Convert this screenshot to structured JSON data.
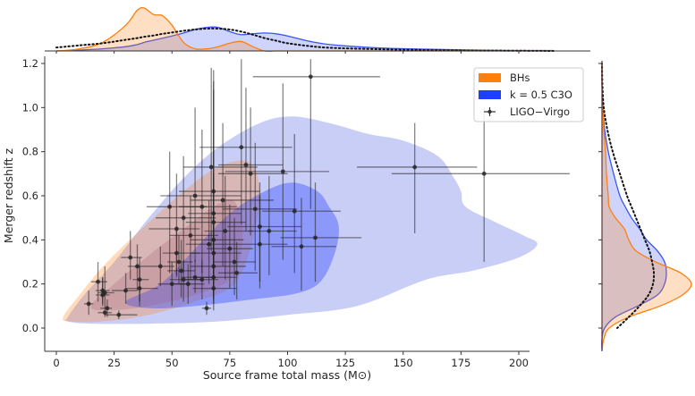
{
  "chart_data": {
    "type": "scatter",
    "xlabel": "Source frame total mass (M⊙)",
    "ylabel": "Merger redshift z",
    "xlim": [
      -5,
      215
    ],
    "ylim": [
      -0.1,
      1.2
    ],
    "xticks": [
      0,
      25,
      50,
      75,
      100,
      125,
      150,
      175,
      200
    ],
    "xtick_labels": [
      "0",
      "25",
      "50",
      "75",
      "100",
      "125",
      "150",
      "175",
      "200"
    ],
    "yticks": [
      0.0,
      0.2,
      0.4,
      0.6,
      0.8,
      1.0,
      1.2
    ],
    "ytick_labels": [
      "0.0",
      "0.2",
      "0.4",
      "0.6",
      "0.8",
      "1.0",
      "1.2"
    ],
    "grid": false,
    "legend": {
      "placement": "top-right",
      "entries": [
        {
          "label": "BHs",
          "kind": "patch",
          "color": "#ff7f0e"
        },
        {
          "label": "k = 0.5 C3O",
          "kind": "patch",
          "color": "#1f3fff"
        },
        {
          "label": "LIGO−Virgo",
          "kind": "errorbar",
          "color": "#333333"
        }
      ]
    },
    "colors": {
      "bhs": "#ff7f0e",
      "c3o": "#2b44ff",
      "ligo": "#222222",
      "kde_dotted": "#111111"
    },
    "contours": {
      "c3o_outer": [
        [
          5,
          0.05
        ],
        [
          12,
          0.15
        ],
        [
          25,
          0.3
        ],
        [
          40,
          0.5
        ],
        [
          55,
          0.68
        ],
        [
          70,
          0.82
        ],
        [
          88,
          0.93
        ],
        [
          102,
          0.96
        ],
        [
          118,
          0.93
        ],
        [
          135,
          0.88
        ],
        [
          150,
          0.85
        ],
        [
          165,
          0.78
        ],
        [
          172,
          0.68
        ],
        [
          175,
          0.62
        ],
        [
          177,
          0.55
        ],
        [
          190,
          0.48
        ],
        [
          202,
          0.42
        ],
        [
          208,
          0.38
        ],
        [
          200,
          0.32
        ],
        [
          180,
          0.26
        ],
        [
          160,
          0.22
        ],
        [
          130,
          0.1
        ],
        [
          100,
          0.06
        ],
        [
          70,
          0.03
        ],
        [
          40,
          0.02
        ],
        [
          15,
          0.02
        ],
        [
          5,
          0.03
        ]
      ],
      "c3o_inner": [
        [
          30,
          0.12
        ],
        [
          45,
          0.2
        ],
        [
          60,
          0.36
        ],
        [
          75,
          0.52
        ],
        [
          90,
          0.62
        ],
        [
          102,
          0.66
        ],
        [
          113,
          0.62
        ],
        [
          118,
          0.55
        ],
        [
          122,
          0.47
        ],
        [
          121,
          0.36
        ],
        [
          115,
          0.22
        ],
        [
          105,
          0.16
        ],
        [
          85,
          0.13
        ],
        [
          60,
          0.1
        ],
        [
          40,
          0.09
        ]
      ],
      "bhs_outer": [
        [
          3,
          0.05
        ],
        [
          10,
          0.15
        ],
        [
          22,
          0.3
        ],
        [
          40,
          0.48
        ],
        [
          55,
          0.62
        ],
        [
          68,
          0.72
        ],
        [
          80,
          0.76
        ],
        [
          86,
          0.72
        ],
        [
          88,
          0.6
        ],
        [
          86,
          0.45
        ],
        [
          82,
          0.3
        ],
        [
          75,
          0.18
        ],
        [
          60,
          0.12
        ],
        [
          40,
          0.06
        ],
        [
          20,
          0.03
        ],
        [
          6,
          0.03
        ]
      ],
      "bhs_inner": [
        [
          15,
          0.1
        ],
        [
          25,
          0.2
        ],
        [
          40,
          0.33
        ],
        [
          55,
          0.45
        ],
        [
          68,
          0.55
        ],
        [
          76,
          0.58
        ],
        [
          80,
          0.5
        ],
        [
          80,
          0.35
        ],
        [
          75,
          0.22
        ],
        [
          60,
          0.15
        ],
        [
          40,
          0.1
        ],
        [
          22,
          0.08
        ]
      ]
    },
    "marginal_x": {
      "x": [
        0,
        10,
        20,
        30,
        35,
        38,
        42,
        46,
        50,
        55,
        60,
        65,
        70,
        75,
        80,
        85,
        90,
        95,
        100,
        110,
        120,
        140,
        160,
        180,
        200,
        215
      ],
      "bhs": [
        0.0,
        0.05,
        0.2,
        0.6,
        0.95,
        1.0,
        0.85,
        0.82,
        0.6,
        0.2,
        0.05,
        0.05,
        0.1,
        0.18,
        0.22,
        0.1,
        0.0,
        0,
        0,
        0,
        0,
        0,
        0,
        0,
        0,
        0
      ],
      "c3o": [
        0.0,
        0.02,
        0.05,
        0.1,
        0.15,
        0.2,
        0.25,
        0.3,
        0.35,
        0.42,
        0.5,
        0.55,
        0.55,
        0.45,
        0.38,
        0.4,
        0.42,
        0.4,
        0.35,
        0.22,
        0.14,
        0.07,
        0.04,
        0.02,
        0.01,
        0.01
      ],
      "ligo": [
        0.08,
        0.13,
        0.18,
        0.26,
        0.3,
        0.33,
        0.36,
        0.4,
        0.43,
        0.47,
        0.5,
        0.52,
        0.52,
        0.5,
        0.45,
        0.38,
        0.3,
        0.24,
        0.18,
        0.11,
        0.07,
        0.04,
        0.02,
        0.01,
        0.005,
        0.0
      ]
    },
    "marginal_y": {
      "y": [
        -0.1,
        -0.05,
        0.0,
        0.05,
        0.1,
        0.15,
        0.2,
        0.25,
        0.3,
        0.35,
        0.4,
        0.45,
        0.5,
        0.55,
        0.6,
        0.7,
        0.8,
        0.9,
        1.0,
        1.1,
        1.2
      ],
      "bhs": [
        0.0,
        0.02,
        0.08,
        0.3,
        0.65,
        0.9,
        1.0,
        0.88,
        0.6,
        0.38,
        0.3,
        0.25,
        0.15,
        0.08,
        0.07,
        0.05,
        0.04,
        0.02,
        0.01,
        0.0,
        0.0
      ],
      "c3o": [
        0.0,
        0.0,
        0.03,
        0.15,
        0.4,
        0.62,
        0.7,
        0.72,
        0.7,
        0.62,
        0.5,
        0.42,
        0.33,
        0.26,
        0.2,
        0.13,
        0.07,
        0.03,
        0.01,
        0.0,
        0.0
      ],
      "ligo": [
        null,
        null,
        0.17,
        0.3,
        0.42,
        0.52,
        0.57,
        0.58,
        0.56,
        0.53,
        0.48,
        0.43,
        0.38,
        0.33,
        0.28,
        0.2,
        0.12,
        0.06,
        0.02,
        0.005,
        0.0
      ]
    },
    "points": [
      {
        "x": 14,
        "y": 0.11,
        "xerr": [
          2,
          2
        ],
        "yerr": [
          0.05,
          0.06
        ]
      },
      {
        "x": 18,
        "y": 0.21,
        "xerr": [
          3,
          4
        ],
        "yerr": [
          0.09,
          0.09
        ]
      },
      {
        "x": 20,
        "y": 0.17,
        "xerr": [
          3,
          3
        ],
        "yerr": [
          0.06,
          0.06
        ]
      },
      {
        "x": 20,
        "y": 0.15,
        "xerr": [
          3,
          3
        ],
        "yerr": [
          0.05,
          0.08
        ]
      },
      {
        "x": 21,
        "y": 0.16,
        "xerr": [
          3,
          4
        ],
        "yerr": [
          0.07,
          0.12
        ]
      },
      {
        "x": 21,
        "y": 0.07,
        "xerr": [
          3,
          3
        ],
        "yerr": [
          0.02,
          0.02
        ]
      },
      {
        "x": 22,
        "y": 0.09,
        "xerr": [
          3,
          2
        ],
        "yerr": [
          0.04,
          0.04
        ]
      },
      {
        "x": 27,
        "y": 0.06,
        "xerr": [
          6,
          8
        ],
        "yerr": [
          0.02,
          0.02
        ]
      },
      {
        "x": 32,
        "y": 0.32,
        "xerr": [
          4,
          5
        ],
        "yerr": [
          0.1,
          0.12
        ]
      },
      {
        "x": 35,
        "y": 0.28,
        "xerr": [
          4,
          4
        ],
        "yerr": [
          0.11,
          0.1
        ]
      },
      {
        "x": 36,
        "y": 0.22,
        "xerr": [
          3,
          4
        ],
        "yerr": [
          0.1,
          0.1
        ]
      },
      {
        "x": 36,
        "y": 0.18,
        "xerr": [
          6,
          8
        ],
        "yerr": [
          0.08,
          0.1
        ]
      },
      {
        "x": 30,
        "y": 0.17,
        "xerr": [
          6,
          5
        ],
        "yerr": [
          0.06,
          0.08
        ]
      },
      {
        "x": 45,
        "y": 0.28,
        "xerr": [
          6,
          6
        ],
        "yerr": [
          0.09,
          0.09
        ]
      },
      {
        "x": 50,
        "y": 0.2,
        "xerr": [
          6,
          8
        ],
        "yerr": [
          0.1,
          0.1
        ]
      },
      {
        "x": 52,
        "y": 0.34,
        "xerr": [
          6,
          10
        ],
        "yerr": [
          0.1,
          0.12
        ]
      },
      {
        "x": 53,
        "y": 0.3,
        "xerr": [
          5,
          6
        ],
        "yerr": [
          0.1,
          0.12
        ]
      },
      {
        "x": 54,
        "y": 0.26,
        "xerr": [
          6,
          6
        ],
        "yerr": [
          0.12,
          0.14
        ]
      },
      {
        "x": 55,
        "y": 0.22,
        "xerr": [
          6,
          8
        ],
        "yerr": [
          0.1,
          0.09
        ]
      },
      {
        "x": 57,
        "y": 0.2,
        "xerr": [
          6,
          7
        ],
        "yerr": [
          0.09,
          0.09
        ]
      },
      {
        "x": 60,
        "y": 0.23,
        "xerr": [
          6,
          8
        ],
        "yerr": [
          0.07,
          0.08
        ]
      },
      {
        "x": 63,
        "y": 0.22,
        "xerr": [
          7,
          7
        ],
        "yerr": [
          0.09,
          0.09
        ]
      },
      {
        "x": 65,
        "y": 0.09,
        "xerr": [
          2,
          2
        ],
        "yerr": [
          0.03,
          0.03
        ]
      },
      {
        "x": 49,
        "y": 0.55,
        "xerr": [
          10,
          16
        ],
        "yerr": [
          0.3,
          0.25
        ]
      },
      {
        "x": 52,
        "y": 0.45,
        "xerr": [
          12,
          10
        ],
        "yerr": [
          0.22,
          0.25
        ]
      },
      {
        "x": 55,
        "y": 0.5,
        "xerr": [
          12,
          14
        ],
        "yerr": [
          0.25,
          0.28
        ]
      },
      {
        "x": 58,
        "y": 0.42,
        "xerr": [
          9,
          12
        ],
        "yerr": [
          0.2,
          0.18
        ]
      },
      {
        "x": 60,
        "y": 0.6,
        "xerr": [
          15,
          20
        ],
        "yerr": [
          0.3,
          0.4
        ]
      },
      {
        "x": 63,
        "y": 0.55,
        "xerr": [
          10,
          15
        ],
        "yerr": [
          0.3,
          0.35
        ]
      },
      {
        "x": 66,
        "y": 0.38,
        "xerr": [
          10,
          12
        ],
        "yerr": [
          0.18,
          0.2
        ]
      },
      {
        "x": 67,
        "y": 0.73,
        "xerr": [
          12,
          20
        ],
        "yerr": [
          0.38,
          0.45
        ]
      },
      {
        "x": 68,
        "y": 0.62,
        "xerr": [
          15,
          20
        ],
        "yerr": [
          0.3,
          0.55
        ]
      },
      {
        "x": 68,
        "y": 0.52,
        "xerr": [
          11,
          12
        ],
        "yerr": [
          0.25,
          0.6
        ]
      },
      {
        "x": 68,
        "y": 0.48,
        "xerr": [
          12,
          14
        ],
        "yerr": [
          0.25,
          0.6
        ]
      },
      {
        "x": 68,
        "y": 0.4,
        "xerr": [
          10,
          13
        ],
        "yerr": [
          0.2,
          0.3
        ]
      },
      {
        "x": 68,
        "y": 0.34,
        "xerr": [
          10,
          12
        ],
        "yerr": [
          0.2,
          0.24
        ]
      },
      {
        "x": 68,
        "y": 0.28,
        "xerr": [
          10,
          14
        ],
        "yerr": [
          0.15,
          0.2
        ]
      },
      {
        "x": 68,
        "y": 0.23,
        "xerr": [
          9,
          10
        ],
        "yerr": [
          0.12,
          0.14
        ]
      },
      {
        "x": 68,
        "y": 0.18,
        "xerr": [
          9,
          10
        ],
        "yerr": [
          0.1,
          0.14
        ]
      },
      {
        "x": 72,
        "y": 0.58,
        "xerr": [
          14,
          22
        ],
        "yerr": [
          0.3,
          0.35
        ]
      },
      {
        "x": 73,
        "y": 0.44,
        "xerr": [
          9,
          12
        ],
        "yerr": [
          0.22,
          0.25
        ]
      },
      {
        "x": 75,
        "y": 0.36,
        "xerr": [
          10,
          10
        ],
        "yerr": [
          0.18,
          0.2
        ]
      },
      {
        "x": 77,
        "y": 0.3,
        "xerr": [
          9,
          9
        ],
        "yerr": [
          0.15,
          0.2
        ]
      },
      {
        "x": 78,
        "y": 0.25,
        "xerr": [
          8,
          9
        ],
        "yerr": [
          0.12,
          0.14
        ]
      },
      {
        "x": 80,
        "y": 0.82,
        "xerr": [
          18,
          22
        ],
        "yerr": [
          0.35,
          0.4
        ]
      },
      {
        "x": 82,
        "y": 0.74,
        "xerr": [
          12,
          16
        ],
        "yerr": [
          0.3,
          0.35
        ]
      },
      {
        "x": 84,
        "y": 0.7,
        "xerr": [
          14,
          16
        ],
        "yerr": [
          0.28,
          0.3
        ]
      },
      {
        "x": 86,
        "y": 0.54,
        "xerr": [
          14,
          18
        ],
        "yerr": [
          0.28,
          0.3
        ]
      },
      {
        "x": 88,
        "y": 0.46,
        "xerr": [
          14,
          18
        ],
        "yerr": [
          0.25,
          0.2
        ]
      },
      {
        "x": 88,
        "y": 0.38,
        "xerr": [
          10,
          12
        ],
        "yerr": [
          0.2,
          0.22
        ]
      },
      {
        "x": 92,
        "y": 0.44,
        "xerr": [
          9,
          12
        ],
        "yerr": [
          0.2,
          0.25
        ]
      },
      {
        "x": 98,
        "y": 0.71,
        "xerr": [
          25,
          20
        ],
        "yerr": [
          0.4,
          0.4
        ]
      },
      {
        "x": 103,
        "y": 0.53,
        "xerr": [
          14,
          20
        ],
        "yerr": [
          0.28,
          0.35
        ]
      },
      {
        "x": 106,
        "y": 0.37,
        "xerr": [
          13,
          15
        ],
        "yerr": [
          0.2,
          0.22
        ]
      },
      {
        "x": 110,
        "y": 1.14,
        "xerr": [
          25,
          30
        ],
        "yerr": [
          0.6,
          0.4
        ]
      },
      {
        "x": 112,
        "y": 0.41,
        "xerr": [
          15,
          20
        ],
        "yerr": [
          0.2,
          0.25
        ]
      },
      {
        "x": 155,
        "y": 0.73,
        "xerr": [
          25,
          27
        ],
        "yerr": [
          0.3,
          0.2
        ]
      },
      {
        "x": 185,
        "y": 0.7,
        "xerr": [
          40,
          37
        ],
        "yerr": [
          0.4,
          0.3
        ]
      }
    ]
  }
}
